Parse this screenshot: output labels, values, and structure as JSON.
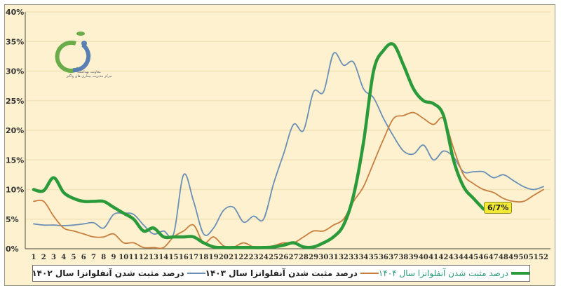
{
  "chart_data": {
    "type": "line",
    "title": "",
    "xlabel": "",
    "ylabel": "",
    "ylim": [
      0,
      40
    ],
    "y_ticks": [
      "0%",
      "5%",
      "10%",
      "15%",
      "20%",
      "25%",
      "30%",
      "35%",
      "40%"
    ],
    "x": [
      1,
      2,
      3,
      4,
      5,
      6,
      7,
      8,
      9,
      10,
      11,
      12,
      13,
      14,
      15,
      16,
      17,
      18,
      19,
      20,
      21,
      22,
      23,
      24,
      25,
      26,
      27,
      28,
      29,
      30,
      31,
      32,
      33,
      34,
      35,
      36,
      37,
      38,
      39,
      40,
      41,
      42,
      43,
      44,
      45,
      46,
      47,
      48,
      49,
      50,
      51,
      52
    ],
    "grid": true,
    "legend_position": "bottom",
    "series": [
      {
        "name": "درصد مثبت شدن آنفلوانزا سال ۱۴۰۲",
        "color": "#6b8fb5",
        "values": [
          4.2,
          4.0,
          4.0,
          3.9,
          4.0,
          4.2,
          4.4,
          3.5,
          5.8,
          6.0,
          5.8,
          4.0,
          2.5,
          3.0,
          2.5,
          12.5,
          8.0,
          2.5,
          3.5,
          6.5,
          7.0,
          4.5,
          5.5,
          5.0,
          11.0,
          16.0,
          21.0,
          20.0,
          26.5,
          26.5,
          33.0,
          31.0,
          31.5,
          27.0,
          25.5,
          22.0,
          19.0,
          16.5,
          16.0,
          17.5,
          15.0,
          16.5,
          15.5,
          13.0,
          13.0,
          13.0,
          12.0,
          12.5,
          11.5,
          10.5,
          10.0,
          10.5
        ]
      },
      {
        "name": "درصد مثبت شدن آنفلوانزا سال ۱۴۰۳",
        "color": "#c77f3f",
        "values": [
          8.0,
          8.0,
          5.5,
          3.5,
          3.0,
          2.5,
          2.0,
          2.0,
          2.5,
          1.0,
          1.0,
          0.2,
          0.2,
          0.2,
          2.0,
          3.0,
          4.0,
          1.0,
          2.0,
          0.5,
          0.3,
          1.0,
          0.3,
          0.2,
          0.5,
          1.0,
          1.0,
          2.0,
          3.0,
          3.0,
          4.0,
          5.0,
          8.0,
          10.5,
          14.5,
          18.5,
          22.0,
          22.5,
          23.0,
          22.0,
          21.0,
          22.0,
          17.0,
          12.5,
          11.0,
          10.0,
          9.5,
          8.5,
          8.0,
          8.0,
          9.0,
          10.0
        ]
      },
      {
        "name": "درصد مثبت شدن آنفلوانزا سال ۱۴۰۴",
        "color": "#2a9a3a",
        "values": [
          10.0,
          9.8,
          12.0,
          9.5,
          8.5,
          8.0,
          8.0,
          8.0,
          7.0,
          6.0,
          5.0,
          3.0,
          3.5,
          2.0,
          2.0,
          2.0,
          2.0,
          1.0,
          0.3,
          0.2,
          0.2,
          0.2,
          0.2,
          0.2,
          0.3,
          0.6,
          1.0,
          0.3,
          0.3,
          1.0,
          2.0,
          4.0,
          9.0,
          18.0,
          30.0,
          33.5,
          34.5,
          31.0,
          27.0,
          25.0,
          24.5,
          22.5,
          15.0,
          10.5,
          8.5,
          6.7
        ]
      }
    ],
    "annotations": [
      {
        "text": "6/7%",
        "x": 46,
        "y": 6.7
      }
    ]
  },
  "legend": {
    "item_1402": "درصد مثبت شدن آنفلوانزا سال ۱۴۰۲",
    "item_1403": "درصد مثبت شدن آنفلوانزا سال ۱۴۰۳",
    "item_1404": "درصد مثبت شدن آنفلوانزا سال ۱۴۰۴"
  },
  "callout": {
    "text": "6/7%"
  },
  "logo": {
    "line1": "معاونت بهداشت",
    "line2": "مرکز مدیریت بیماری های واگیر"
  },
  "colors": {
    "background": "#fdf1cf",
    "grid": "#f3e3b8",
    "s1402": "#6b8fb5",
    "s1403": "#c77f3f",
    "s1404": "#2a9a3a",
    "callout": "#f3ea33"
  }
}
